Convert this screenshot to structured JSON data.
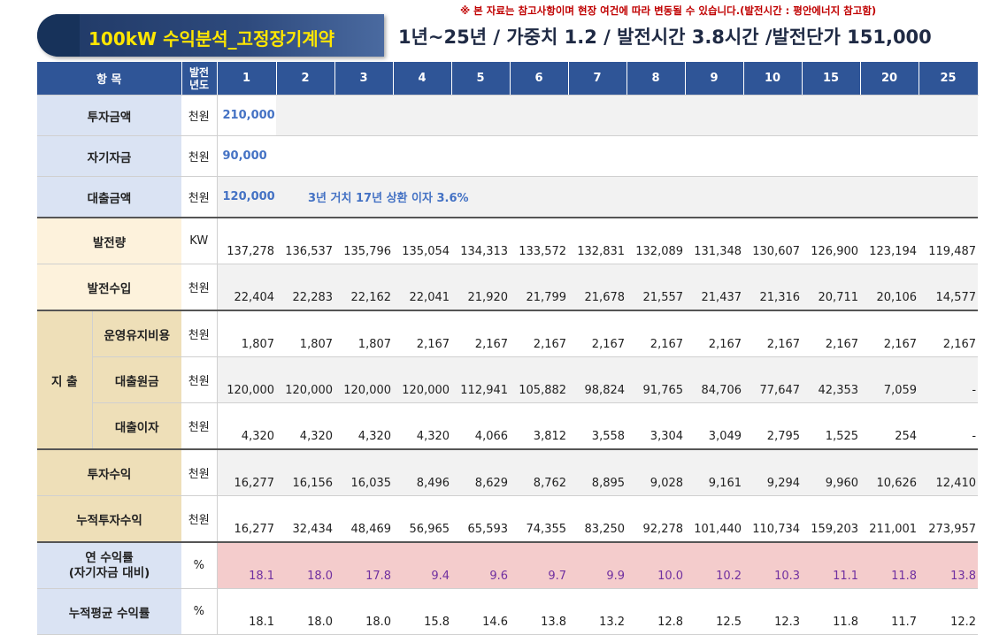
{
  "notice": "※ 본 자료는 참고사항이며 현장 여건에 따라 변동될 수 있습니다.(발전시간 : 평안에너지 참고함)",
  "title": "100kW 수익분석_고정장기계약",
  "subtitle": "1년~25년 / 가중치 1.2 / 발전시간 3.8시간 /발전단가 151,000",
  "header": {
    "item": "항 목",
    "year_label": [
      "발전",
      "년도"
    ],
    "years": [
      "1",
      "2",
      "3",
      "4",
      "5",
      "6",
      "7",
      "8",
      "9",
      "10",
      "15",
      "20",
      "25"
    ]
  },
  "investment": {
    "total": {
      "label": "투자금액",
      "unit": "천원",
      "value": "210,000"
    },
    "equity": {
      "label": "자기자금",
      "unit": "천원",
      "value": "90,000"
    },
    "loan": {
      "label": "대출금액",
      "unit": "천원",
      "value": "120,000",
      "note": "3년 거치 17년 상환 이자 3.6%"
    }
  },
  "generation": {
    "label": "발전량",
    "unit": "KW",
    "values": [
      "137,278",
      "136,537",
      "135,796",
      "135,054",
      "134,313",
      "133,572",
      "132,831",
      "132,089",
      "131,348",
      "130,607",
      "126,900",
      "123,194",
      "119,487"
    ]
  },
  "income": {
    "label": "발전수입",
    "unit": "천원",
    "values": [
      "22,404",
      "22,283",
      "22,162",
      "22,041",
      "21,920",
      "21,799",
      "21,678",
      "21,557",
      "21,437",
      "21,316",
      "20,711",
      "20,106",
      "14,577"
    ]
  },
  "expense": {
    "group_label": "지 출",
    "rows": [
      {
        "label": "운영유지비용",
        "unit": "천원",
        "values": [
          "1,807",
          "1,807",
          "1,807",
          "2,167",
          "2,167",
          "2,167",
          "2,167",
          "2,167",
          "2,167",
          "2,167",
          "2,167",
          "2,167",
          "2,167"
        ]
      },
      {
        "label": "대출원금",
        "unit": "천원",
        "values": [
          "120,000",
          "120,000",
          "120,000",
          "120,000",
          "112,941",
          "105,882",
          "98,824",
          "91,765",
          "84,706",
          "77,647",
          "42,353",
          "7,059",
          "-"
        ]
      },
      {
        "label": "대출이자",
        "unit": "천원",
        "values": [
          "4,320",
          "4,320",
          "4,320",
          "4,320",
          "4,066",
          "3,812",
          "3,558",
          "3,304",
          "3,049",
          "2,795",
          "1,525",
          "254",
          "-"
        ]
      }
    ]
  },
  "profit": {
    "label": "투자수익",
    "unit": "천원",
    "values": [
      "16,277",
      "16,156",
      "16,035",
      "8,496",
      "8,629",
      "8,762",
      "8,895",
      "9,028",
      "9,161",
      "9,294",
      "9,960",
      "10,626",
      "12,410"
    ]
  },
  "cumulative": {
    "label": "누적투자수익",
    "unit": "천원",
    "values": [
      "16,277",
      "32,434",
      "48,469",
      "56,965",
      "65,593",
      "74,355",
      "83,250",
      "92,278",
      "101,440",
      "110,734",
      "159,203",
      "211,001",
      "273,957"
    ]
  },
  "annual_yield": {
    "label": [
      "연 수익률",
      "(자기자금 대비)"
    ],
    "unit": "%",
    "values": [
      "18.1",
      "18.0",
      "17.8",
      "9.4",
      "9.6",
      "9.7",
      "9.9",
      "10.0",
      "10.2",
      "10.3",
      "11.1",
      "11.8",
      "13.8"
    ]
  },
  "avg_yield": {
    "label": "누적평균 수익률",
    "unit": "%",
    "values": [
      "18.1",
      "18.0",
      "18.0",
      "15.8",
      "14.6",
      "13.8",
      "13.2",
      "12.8",
      "12.5",
      "12.3",
      "11.8",
      "11.7",
      "12.2"
    ]
  }
}
